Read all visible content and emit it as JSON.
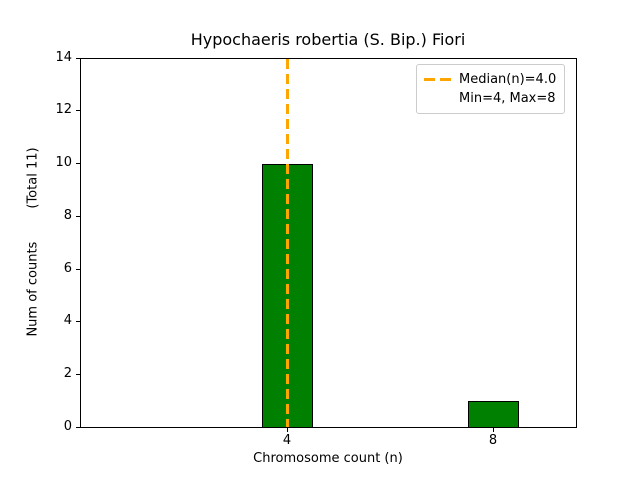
{
  "chart_data": {
    "type": "bar",
    "title": "Hypochaeris robertia (S. Bip.) Fiori",
    "xlabel": "Chromosome count (n)",
    "ylabel": "Num of counts        (Total 11)",
    "total_counts": 11,
    "categories": [
      4,
      8
    ],
    "values": [
      10,
      1
    ],
    "xticks": [
      "4",
      "8"
    ],
    "yticks": [
      0,
      2,
      4,
      6,
      8,
      10,
      12,
      14
    ],
    "ylim": [
      0,
      14
    ],
    "grid": false,
    "bar_color": "#008000",
    "bar_edge_color": "#000000",
    "median_line": {
      "x": 4.0,
      "color": "#FFA500",
      "linestyle": "dashed"
    },
    "legend": {
      "position": "upper right",
      "entries": [
        {
          "label": "Median(n)=4.0",
          "handle": "orange-dashed-line"
        },
        {
          "label": "Min=4, Max=8",
          "handle": "none"
        }
      ]
    }
  }
}
